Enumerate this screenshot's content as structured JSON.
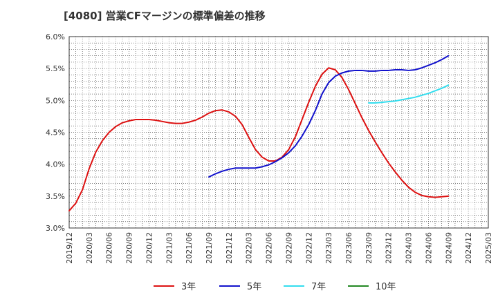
{
  "chart_data": {
    "type": "line",
    "title": "[4080]  営業CFマージンの標準偏差の推移",
    "xlabel": "",
    "ylabel": "",
    "ylim": [
      3.0,
      6.0
    ],
    "y_tick_labels": [
      "3.0%",
      "3.5%",
      "4.0%",
      "4.5%",
      "5.0%",
      "5.5%",
      "6.0%"
    ],
    "x_tick_labels": [
      "2019/12",
      "2020/03",
      "2020/06",
      "2020/09",
      "2020/12",
      "2021/03",
      "2021/06",
      "2021/09",
      "2021/12",
      "2022/03",
      "2022/06",
      "2022/09",
      "2022/12",
      "2023/03",
      "2023/06",
      "2023/09",
      "2023/12",
      "2024/03",
      "2024/06",
      "2024/09",
      "2024/12",
      "2025/03"
    ],
    "grid": true,
    "legend_position": "bottom",
    "x_unit": "month",
    "series": [
      {
        "name": "3年",
        "color": "#dd1111",
        "points": [
          [
            "2019/12",
            3.27
          ],
          [
            "2020/01",
            3.39
          ],
          [
            "2020/02",
            3.6
          ],
          [
            "2020/03",
            3.93
          ],
          [
            "2020/04",
            4.19
          ],
          [
            "2020/05",
            4.37
          ],
          [
            "2020/06",
            4.5
          ],
          [
            "2020/07",
            4.59
          ],
          [
            "2020/08",
            4.65
          ],
          [
            "2020/09",
            4.68
          ],
          [
            "2020/10",
            4.7
          ],
          [
            "2020/11",
            4.7
          ],
          [
            "2020/12",
            4.7
          ],
          [
            "2021/01",
            4.69
          ],
          [
            "2021/02",
            4.67
          ],
          [
            "2021/03",
            4.65
          ],
          [
            "2021/04",
            4.64
          ],
          [
            "2021/05",
            4.64
          ],
          [
            "2021/06",
            4.66
          ],
          [
            "2021/07",
            4.69
          ],
          [
            "2021/08",
            4.74
          ],
          [
            "2021/09",
            4.8
          ],
          [
            "2021/10",
            4.84
          ],
          [
            "2021/11",
            4.85
          ],
          [
            "2021/12",
            4.82
          ],
          [
            "2022/01",
            4.75
          ],
          [
            "2022/02",
            4.62
          ],
          [
            "2022/03",
            4.42
          ],
          [
            "2022/04",
            4.23
          ],
          [
            "2022/05",
            4.11
          ],
          [
            "2022/06",
            4.05
          ],
          [
            "2022/07",
            4.05
          ],
          [
            "2022/08",
            4.11
          ],
          [
            "2022/09",
            4.23
          ],
          [
            "2022/10",
            4.43
          ],
          [
            "2022/11",
            4.7
          ],
          [
            "2022/12",
            4.97
          ],
          [
            "2023/01",
            5.22
          ],
          [
            "2023/02",
            5.41
          ],
          [
            "2023/03",
            5.51
          ],
          [
            "2023/04",
            5.48
          ],
          [
            "2023/05",
            5.36
          ],
          [
            "2023/06",
            5.17
          ],
          [
            "2023/07",
            4.95
          ],
          [
            "2023/08",
            4.73
          ],
          [
            "2023/09",
            4.53
          ],
          [
            "2023/10",
            4.35
          ],
          [
            "2023/11",
            4.18
          ],
          [
            "2023/12",
            4.02
          ],
          [
            "2024/01",
            3.88
          ],
          [
            "2024/02",
            3.75
          ],
          [
            "2024/03",
            3.64
          ],
          [
            "2024/04",
            3.56
          ],
          [
            "2024/05",
            3.51
          ],
          [
            "2024/06",
            3.49
          ],
          [
            "2024/07",
            3.48
          ],
          [
            "2024/08",
            3.49
          ],
          [
            "2024/09",
            3.5
          ]
        ]
      },
      {
        "name": "5年",
        "color": "#1111cc",
        "points": [
          [
            "2021/09",
            3.8
          ],
          [
            "2021/10",
            3.85
          ],
          [
            "2021/11",
            3.89
          ],
          [
            "2021/12",
            3.92
          ],
          [
            "2022/01",
            3.94
          ],
          [
            "2022/02",
            3.94
          ],
          [
            "2022/03",
            3.94
          ],
          [
            "2022/04",
            3.94
          ],
          [
            "2022/05",
            3.96
          ],
          [
            "2022/06",
            3.99
          ],
          [
            "2022/07",
            4.04
          ],
          [
            "2022/08",
            4.1
          ],
          [
            "2022/09",
            4.18
          ],
          [
            "2022/10",
            4.29
          ],
          [
            "2022/11",
            4.44
          ],
          [
            "2022/12",
            4.62
          ],
          [
            "2023/01",
            4.84
          ],
          [
            "2023/02",
            5.1
          ],
          [
            "2023/03",
            5.28
          ],
          [
            "2023/04",
            5.38
          ],
          [
            "2023/05",
            5.43
          ],
          [
            "2023/06",
            5.46
          ],
          [
            "2023/07",
            5.47
          ],
          [
            "2023/08",
            5.47
          ],
          [
            "2023/09",
            5.46
          ],
          [
            "2023/10",
            5.46
          ],
          [
            "2023/11",
            5.47
          ],
          [
            "2023/12",
            5.47
          ],
          [
            "2024/01",
            5.48
          ],
          [
            "2024/02",
            5.48
          ],
          [
            "2024/03",
            5.47
          ],
          [
            "2024/04",
            5.48
          ],
          [
            "2024/05",
            5.51
          ],
          [
            "2024/06",
            5.55
          ],
          [
            "2024/07",
            5.59
          ],
          [
            "2024/08",
            5.64
          ],
          [
            "2024/09",
            5.7
          ]
        ]
      },
      {
        "name": "7年",
        "color": "#33ddee",
        "points": [
          [
            "2023/09",
            4.96
          ],
          [
            "2023/10",
            4.96
          ],
          [
            "2023/11",
            4.97
          ],
          [
            "2023/12",
            4.98
          ],
          [
            "2024/01",
            4.99
          ],
          [
            "2024/02",
            5.01
          ],
          [
            "2024/03",
            5.03
          ],
          [
            "2024/04",
            5.05
          ],
          [
            "2024/05",
            5.08
          ],
          [
            "2024/06",
            5.11
          ],
          [
            "2024/07",
            5.15
          ],
          [
            "2024/08",
            5.19
          ],
          [
            "2024/09",
            5.24
          ]
        ]
      },
      {
        "name": "10年",
        "color": "#228822",
        "points": []
      }
    ]
  }
}
